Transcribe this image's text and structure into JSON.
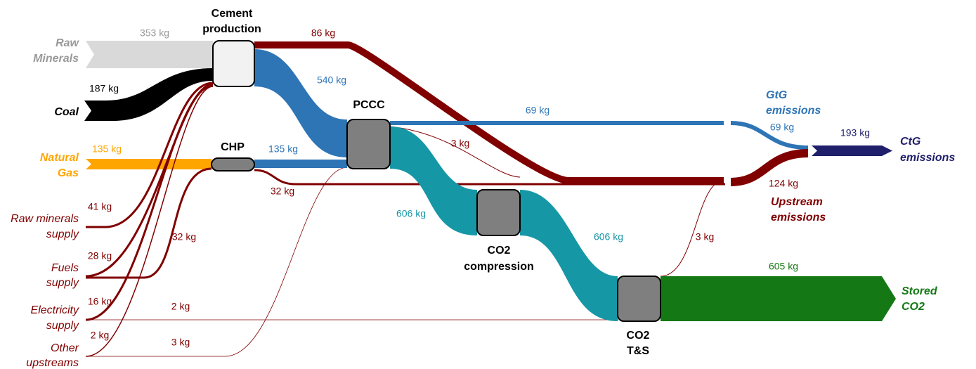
{
  "nodes": [
    {
      "label": [
        "Cement",
        "production"
      ]
    },
    {
      "label": [
        "CHP"
      ]
    },
    {
      "label": [
        "PCCC"
      ]
    },
    {
      "label": [
        "CO2",
        "compression"
      ]
    },
    {
      "label": [
        "CO2",
        "T&S"
      ]
    }
  ],
  "sources": [
    {
      "label": [
        "Raw",
        "Minerals"
      ]
    },
    {
      "label": [
        "Coal"
      ]
    },
    {
      "label": [
        "Natural",
        "Gas"
      ]
    },
    {
      "label": [
        "Raw minerals",
        "supply"
      ]
    },
    {
      "label": [
        "Fuels",
        "supply"
      ]
    },
    {
      "label": [
        "Electricity",
        "supply"
      ]
    },
    {
      "label": [
        "Other",
        "upstreams"
      ]
    }
  ],
  "sinks": [
    {
      "label": [
        "GtG",
        "emissions"
      ]
    },
    {
      "label": [
        "CtG",
        "emissions"
      ]
    },
    {
      "label": [
        "Upstream",
        "emissions"
      ]
    },
    {
      "label": [
        "Stored",
        "CO2"
      ]
    }
  ],
  "flow_labels": [
    "353 kg",
    "86 kg",
    "187 kg",
    "540 kg",
    "69 kg",
    "69 kg",
    "193 kg",
    "3 kg",
    "135 kg",
    "135 kg",
    "32 kg",
    "124 kg",
    "41 kg",
    "606 kg",
    "606 kg",
    "3 kg",
    "32 kg",
    "28 kg",
    "605 kg",
    "16 kg",
    "2 kg",
    "2 kg",
    "3 kg"
  ]
}
